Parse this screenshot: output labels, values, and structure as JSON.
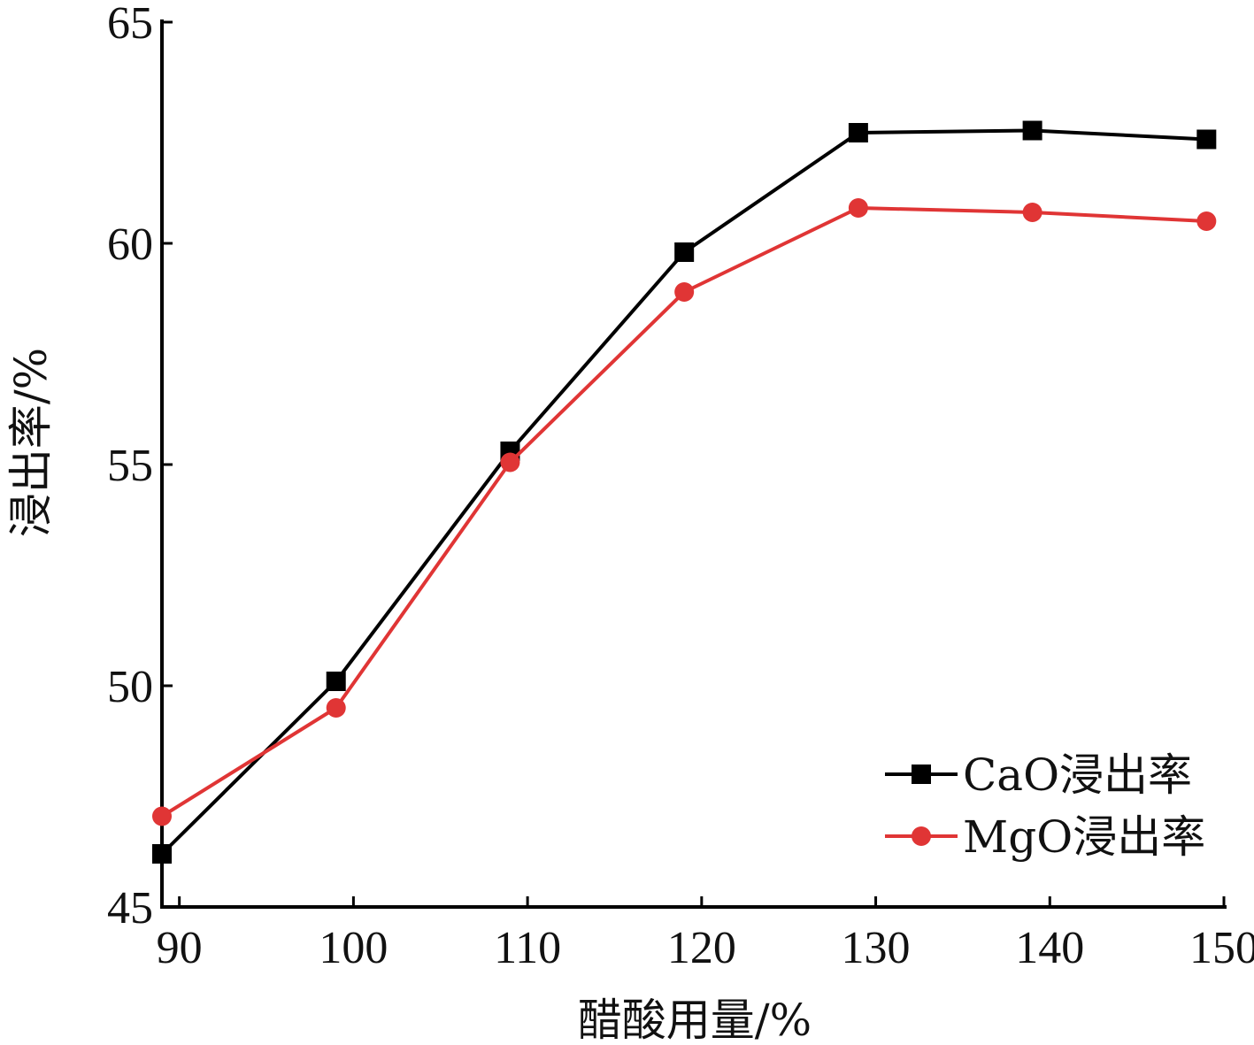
{
  "chart_data": {
    "type": "line",
    "xlabel": "醋酸用量/%",
    "ylabel": "浸出率/%",
    "xlim": [
      89,
      150
    ],
    "ylim": [
      45,
      65
    ],
    "xticks": [
      90,
      100,
      110,
      120,
      130,
      140,
      150
    ],
    "yticks": [
      45,
      50,
      55,
      60,
      65
    ],
    "grid": false,
    "legend_position": "bottom-right",
    "series": [
      {
        "name": "CaO浸出率",
        "color": "#000000",
        "marker": "square",
        "x": [
          89,
          99,
          109,
          119,
          129,
          139,
          149
        ],
        "y": [
          46.2,
          50.1,
          55.3,
          59.8,
          62.5,
          62.55,
          62.35
        ]
      },
      {
        "name": "MgO浸出率",
        "color": "#e03535",
        "marker": "circle",
        "x": [
          89,
          99,
          109,
          119,
          129,
          139,
          149
        ],
        "y": [
          47.05,
          49.5,
          55.05,
          58.9,
          60.8,
          60.7,
          60.5
        ]
      }
    ]
  }
}
